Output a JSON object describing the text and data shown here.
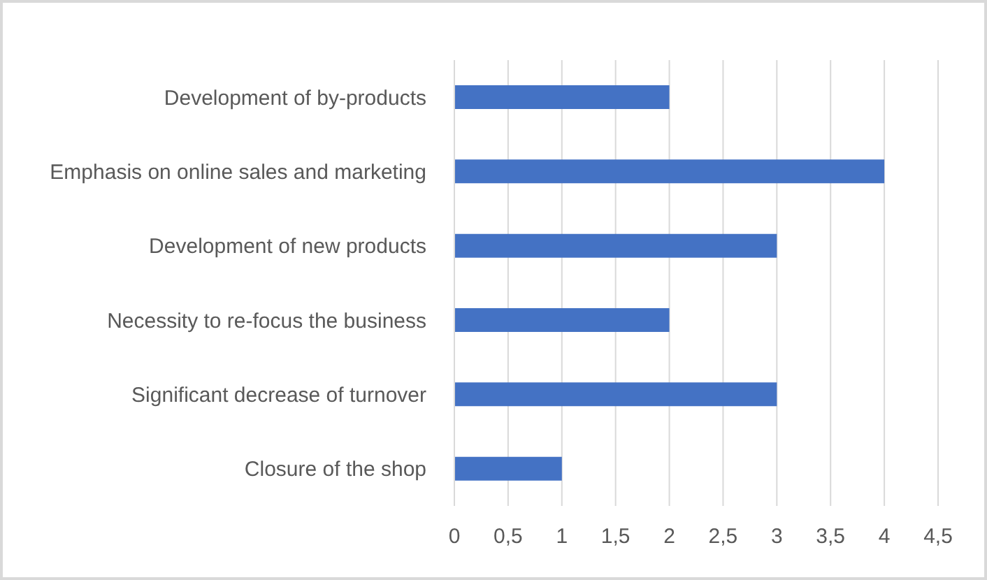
{
  "chart_data": {
    "type": "bar",
    "orientation": "horizontal",
    "categories": [
      "Development of by-products",
      "Emphasis on online sales and marketing",
      "Development of new products",
      "Necessity to re-focus the business",
      "Significant decrease of turnover",
      "Closure of the shop"
    ],
    "values": [
      2,
      4,
      3,
      2,
      3,
      1
    ],
    "color": "#4472c4",
    "xlim": [
      0,
      4.5
    ],
    "xticks": [
      0,
      {
        "value": 0.5,
        "label": "0,5"
      },
      1,
      {
        "value": 1.5,
        "label": "1,5"
      },
      2,
      {
        "value": 2.5,
        "label": "2,5"
      },
      3,
      {
        "value": 3.5,
        "label": "3,5"
      },
      4,
      {
        "value": 4.5,
        "label": "4,5"
      }
    ],
    "grid": "x"
  }
}
